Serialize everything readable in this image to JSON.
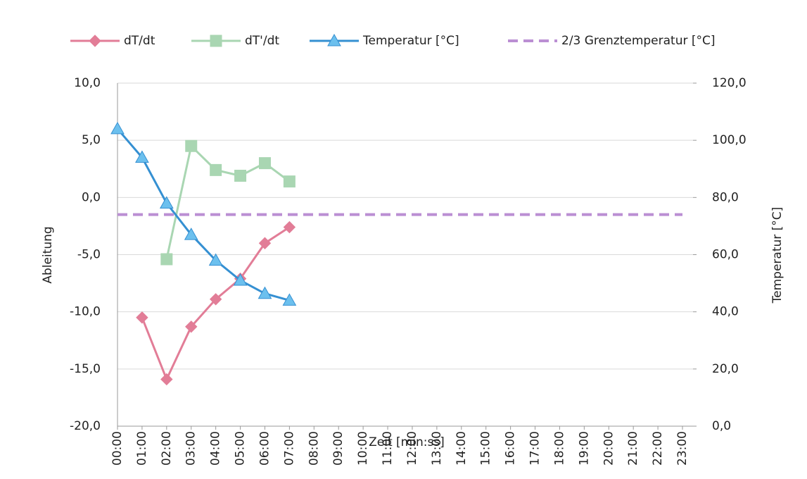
{
  "chart_data": {
    "type": "line",
    "x_label": "Zeit [min:ss]",
    "y_label": "Ableitung",
    "y2_label": "Temperatur [°C]",
    "legend": "top",
    "grid": true,
    "categories": [
      "00:00",
      "01:00",
      "02:00",
      "03:00",
      "04:00",
      "05:00",
      "06:00",
      "07:00",
      "08:00",
      "09:00",
      "10:00",
      "11:00",
      "12:00",
      "13:00",
      "14:00",
      "15:00",
      "16:00",
      "17:00",
      "18:00",
      "19:00",
      "20:00",
      "21:00",
      "22:00",
      "23:00"
    ],
    "ylim": [
      -20,
      10
    ],
    "yticks": [
      {
        "value": -20,
        "label": "-20,0"
      },
      {
        "value": -15,
        "label": "-15,0"
      },
      {
        "value": -10,
        "label": "-10,0"
      },
      {
        "value": -5,
        "label": "-5,0"
      },
      {
        "value": 0,
        "label": "0,0"
      },
      {
        "value": 5,
        "label": "5,0"
      },
      {
        "value": 10,
        "label": "10,0"
      }
    ],
    "y2lim": [
      0,
      120
    ],
    "y2ticks": [
      {
        "value": 0,
        "label": "0,0"
      },
      {
        "value": 20,
        "label": "20,0"
      },
      {
        "value": 40,
        "label": "40,0"
      },
      {
        "value": 60,
        "label": "60,0"
      },
      {
        "value": 80,
        "label": "80,0"
      },
      {
        "value": 100,
        "label": "100,0"
      },
      {
        "value": 120,
        "label": "120,0"
      }
    ],
    "series": [
      {
        "name": "dT/dt",
        "color": "#e27d97",
        "marker": "diamond",
        "values": [
          null,
          -10.5,
          -15.9,
          -11.3,
          -8.9,
          -7.1,
          -4.0,
          -2.6,
          null,
          null,
          null,
          null,
          null,
          null,
          null,
          null,
          null,
          null,
          null,
          null,
          null,
          null,
          null,
          null
        ]
      },
      {
        "name": "dT'/dt",
        "color": "#a9d6b2",
        "marker": "square",
        "values": [
          null,
          null,
          -5.4,
          4.5,
          2.4,
          1.9,
          3.0,
          1.4,
          null,
          null,
          null,
          null,
          null,
          null,
          null,
          null,
          null,
          null,
          null,
          null,
          null,
          null,
          null,
          null
        ]
      },
      {
        "name": "Temperatur [°C]",
        "color": "#3590d2",
        "marker": "triangle",
        "axis": "y2",
        "values": [
          104,
          94,
          78,
          67,
          58,
          51,
          46.4,
          44,
          null,
          null,
          null,
          null,
          null,
          null,
          null,
          null,
          null,
          null,
          null,
          null,
          null,
          null,
          null,
          null
        ]
      },
      {
        "name": "2/3 Grenztemperatur [°C]",
        "color": "#bb8fd3",
        "marker": "none",
        "dashed": true,
        "axis": "y2",
        "values": [
          74,
          74,
          74,
          74,
          74,
          74,
          74,
          74,
          74,
          74,
          74,
          74,
          74,
          74,
          74,
          74,
          74,
          74,
          74,
          74,
          74,
          74,
          74,
          74
        ]
      }
    ]
  }
}
